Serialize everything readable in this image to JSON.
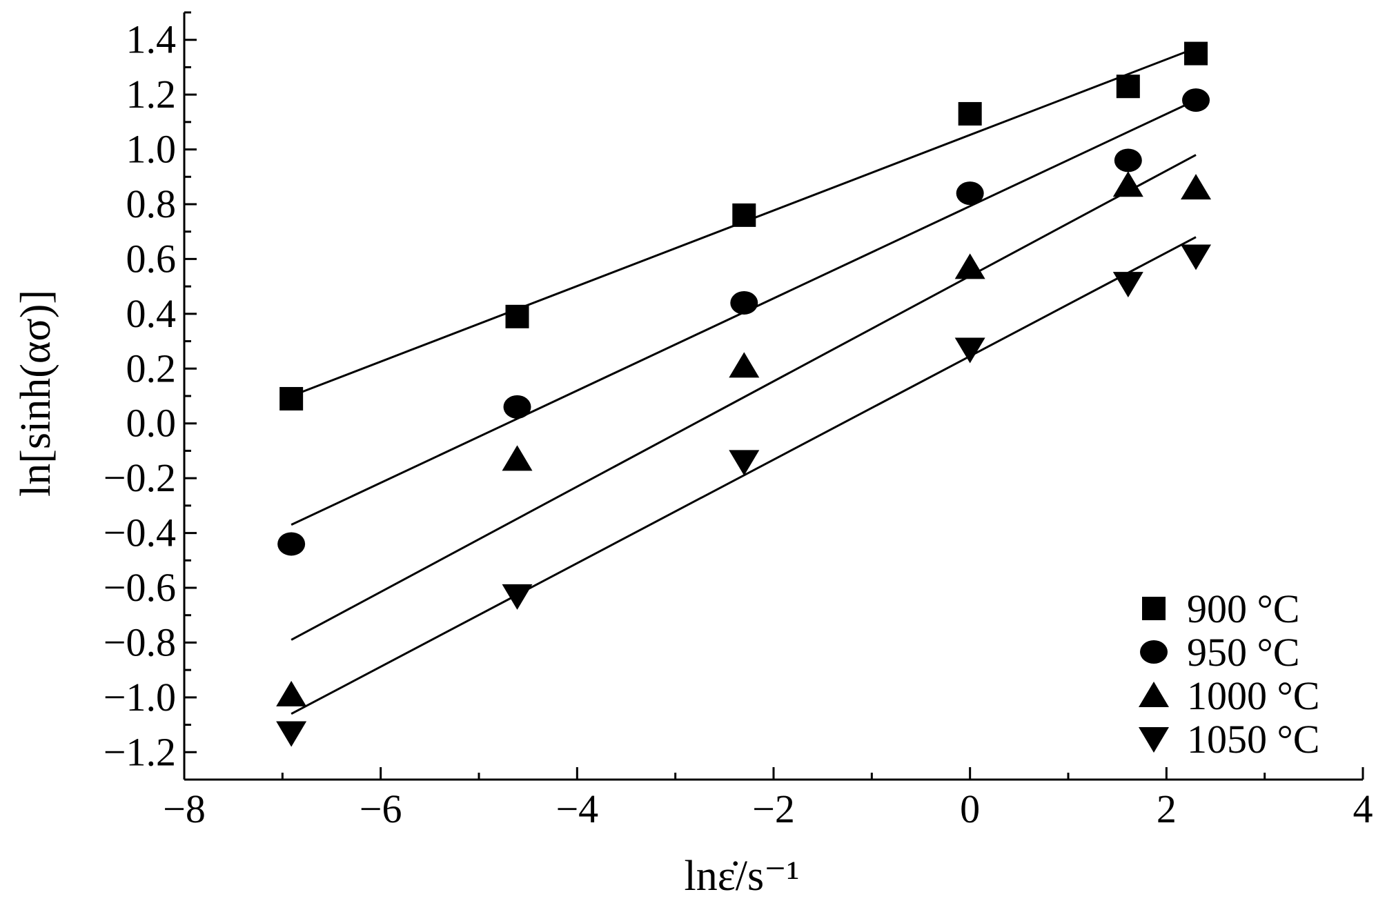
{
  "chart_data": {
    "type": "scatter",
    "xlabel": "lnε̇/s⁻¹",
    "ylabel": "ln[sinh(ασ)]",
    "xlim": [
      -8,
      4
    ],
    "ylim": [
      -1.3,
      1.5
    ],
    "x_ticks": [
      -8,
      -6,
      -4,
      -2,
      0,
      2,
      4
    ],
    "x_tick_labels": [
      "−8",
      "−6",
      "−4",
      "−2",
      "0",
      "2",
      "4"
    ],
    "y_ticks": [
      1.4,
      1.2,
      1.0,
      0.8,
      0.6,
      0.4,
      0.2,
      0.0,
      -0.2,
      -0.4,
      -0.6,
      -0.8,
      -1.0,
      -1.2
    ],
    "y_tick_labels": [
      "1.4",
      "1.2",
      "1.0",
      "0.8",
      "0.6",
      "0.4",
      "0.2",
      "0.0",
      "−0.2",
      "−0.4",
      "−0.6",
      "−0.8",
      "−1.0",
      "−1.2"
    ],
    "grid": false,
    "legend_position": "bottom-right",
    "series": [
      {
        "name": "900 °C",
        "marker": "square",
        "x": [
          -6.91,
          -4.61,
          -2.3,
          0,
          1.61,
          2.3
        ],
        "y": [
          0.09,
          0.39,
          0.76,
          1.13,
          1.23,
          1.35
        ],
        "fit": [
          [
            -6.91,
            0.1
          ],
          [
            2.3,
            1.37
          ]
        ]
      },
      {
        "name": "950 °C",
        "marker": "circle",
        "x": [
          -6.91,
          -4.61,
          -2.3,
          0,
          1.61,
          2.3
        ],
        "y": [
          -0.44,
          0.06,
          0.44,
          0.84,
          0.96,
          1.18
        ],
        "fit": [
          [
            -6.91,
            -0.37
          ],
          [
            2.3,
            1.18
          ]
        ]
      },
      {
        "name": "1000 °C",
        "marker": "triangle-up",
        "x": [
          -6.91,
          -4.61,
          -2.3,
          0,
          1.61,
          2.3
        ],
        "y": [
          -0.99,
          -0.13,
          0.21,
          0.57,
          0.87,
          0.86
        ],
        "fit": [
          [
            -6.91,
            -0.79
          ],
          [
            2.3,
            0.98
          ]
        ]
      },
      {
        "name": "1050 °C",
        "marker": "triangle-down",
        "x": [
          -6.91,
          -4.61,
          -2.3,
          0,
          1.61,
          2.3
        ],
        "y": [
          -1.13,
          -0.63,
          -0.14,
          0.27,
          0.51,
          0.61
        ],
        "fit": [
          [
            -6.91,
            -1.06
          ],
          [
            2.3,
            0.68
          ]
        ]
      }
    ]
  }
}
